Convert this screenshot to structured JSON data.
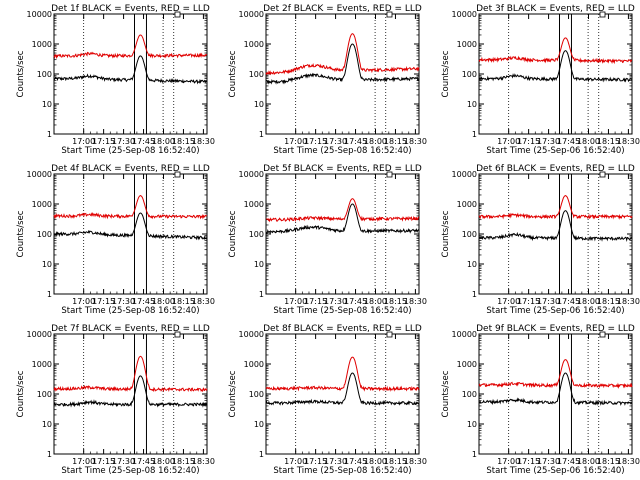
{
  "figure": {
    "xticks": [
      "17:00",
      "17:15",
      "17:30",
      "17:45",
      "18:00",
      "18:15",
      "18:30"
    ],
    "yticks": [
      "1",
      "10",
      "100",
      "1000",
      "10000"
    ],
    "ylabel": "Counts/sec",
    "xlabel": "Start Time (25-Sep-08 16:52:40)",
    "xlabel_alt": "Start Time (25-Sep-06 16:52:40)",
    "colors": {
      "events": "#000000",
      "lld": "#e00000"
    }
  },
  "chart_data": [
    {
      "type": "line",
      "title": "Det 1f BLACK = Events, RED = LLD",
      "xlabel": "Start Time (25-Sep-08 16:52:40)",
      "ylabel": "Counts/sec",
      "x_range_minutes": [
        -15,
        100
      ],
      "y_range": [
        1,
        10000
      ],
      "y_scale": "log",
      "dotted_vlines_min": [
        7.3,
        67,
        75
      ],
      "solid_vlines_min": [
        45.5,
        54.5
      ],
      "series": [
        {
          "name": "Events",
          "color": "#000000",
          "baseline": 70,
          "hump": {
            "center": 12,
            "width": 8,
            "height": 100
          },
          "peak": 400,
          "mid_trend": 55
        },
        {
          "name": "LLD",
          "color": "#e00000",
          "baseline": 400,
          "hump": {
            "center": 12,
            "width": 8,
            "height": 520
          },
          "peak": 2000,
          "mid_trend": 420
        }
      ]
    },
    {
      "type": "line",
      "title": "Det 2f BLACK = Events, RED = LLD",
      "xlabel": "Start Time (25-Sep-08 16:52:40)",
      "ylabel": "Counts/sec",
      "x_range_minutes": [
        -15,
        100
      ],
      "y_range": [
        1,
        10000
      ],
      "y_scale": "log",
      "dotted_vlines_min": [
        7.3,
        67,
        75
      ],
      "solid_vlines_min": [],
      "series": [
        {
          "name": "Events",
          "color": "#000000",
          "baseline": 55,
          "hump": {
            "center": 20,
            "width": 14,
            "height": 110
          },
          "peak": 1000,
          "mid_trend": 70
        },
        {
          "name": "LLD",
          "color": "#e00000",
          "baseline": 110,
          "hump": {
            "center": 20,
            "width": 14,
            "height": 240
          },
          "peak": 2200,
          "mid_trend": 150
        }
      ]
    },
    {
      "type": "line",
      "title": "Det 3f BLACK = Events, RED = LLD",
      "xlabel": "Start Time (25-Sep-06 16:52:40)",
      "ylabel": "Counts/sec",
      "x_range_minutes": [
        -15,
        100
      ],
      "y_range": [
        1,
        10000
      ],
      "y_scale": "log",
      "dotted_vlines_min": [
        7.3,
        67,
        75
      ],
      "solid_vlines_min": [
        45.5,
        54.5
      ],
      "series": [
        {
          "name": "Events",
          "color": "#000000",
          "baseline": 70,
          "hump": {
            "center": 12,
            "width": 8,
            "height": 100
          },
          "peak": 600,
          "mid_trend": 65
        },
        {
          "name": "LLD",
          "color": "#e00000",
          "baseline": 300,
          "hump": {
            "center": 12,
            "width": 8,
            "height": 380
          },
          "peak": 1600,
          "mid_trend": 270
        }
      ]
    },
    {
      "type": "line",
      "title": "Det 4f BLACK = Events, RED = LLD",
      "xlabel": "Start Time (25-Sep-08 16:52:40)",
      "ylabel": "Counts/sec",
      "x_range_minutes": [
        -15,
        100
      ],
      "y_range": [
        1,
        10000
      ],
      "y_scale": "log",
      "dotted_vlines_min": [
        7.3,
        67,
        75
      ],
      "solid_vlines_min": [
        45.5,
        54.5
      ],
      "series": [
        {
          "name": "Events",
          "color": "#000000",
          "baseline": 100,
          "hump": {
            "center": 12,
            "width": 8,
            "height": 130
          },
          "peak": 500,
          "mid_trend": 75
        },
        {
          "name": "LLD",
          "color": "#e00000",
          "baseline": 400,
          "hump": {
            "center": 12,
            "width": 8,
            "height": 480
          },
          "peak": 1900,
          "mid_trend": 380
        }
      ]
    },
    {
      "type": "line",
      "title": "Det 5f BLACK = Events, RED = LLD",
      "xlabel": "Start Time (25-Sep-08 16:52:40)",
      "ylabel": "Counts/sec",
      "x_range_minutes": [
        -15,
        100
      ],
      "y_range": [
        1,
        10000
      ],
      "y_scale": "log",
      "dotted_vlines_min": [
        7.3,
        67,
        75
      ],
      "solid_vlines_min": [],
      "series": [
        {
          "name": "Events",
          "color": "#000000",
          "baseline": 120,
          "hump": {
            "center": 20,
            "width": 14,
            "height": 200
          },
          "peak": 1000,
          "mid_trend": 130
        },
        {
          "name": "LLD",
          "color": "#e00000",
          "baseline": 300,
          "hump": {
            "center": 20,
            "width": 14,
            "height": 360
          },
          "peak": 1500,
          "mid_trend": 330
        }
      ]
    },
    {
      "type": "line",
      "title": "Det 6f BLACK = Events, RED = LLD",
      "xlabel": "Start Time (25-Sep-06 16:52:40)",
      "ylabel": "Counts/sec",
      "x_range_minutes": [
        -15,
        100
      ],
      "y_range": [
        1,
        10000
      ],
      "y_scale": "log",
      "dotted_vlines_min": [
        7.3,
        67,
        75
      ],
      "solid_vlines_min": [
        45.5,
        54.5
      ],
      "series": [
        {
          "name": "Events",
          "color": "#000000",
          "baseline": 75,
          "hump": {
            "center": 12,
            "width": 8,
            "height": 110
          },
          "peak": 600,
          "mid_trend": 70
        },
        {
          "name": "LLD",
          "color": "#e00000",
          "baseline": 380,
          "hump": {
            "center": 12,
            "width": 8,
            "height": 460
          },
          "peak": 1900,
          "mid_trend": 380
        }
      ]
    },
    {
      "type": "line",
      "title": "Det 7f BLACK = Events, RED = LLD",
      "xlabel": "Start Time (25-Sep-08 16:52:40)",
      "ylabel": "Counts/sec",
      "x_range_minutes": [
        -15,
        100
      ],
      "y_range": [
        1,
        10000
      ],
      "y_scale": "log",
      "dotted_vlines_min": [
        7.3,
        67,
        75
      ],
      "solid_vlines_min": [
        45.5,
        54.5
      ],
      "series": [
        {
          "name": "Events",
          "color": "#000000",
          "baseline": 45,
          "hump": {
            "center": 12,
            "width": 8,
            "height": 60
          },
          "peak": 400,
          "mid_trend": 45
        },
        {
          "name": "LLD",
          "color": "#e00000",
          "baseline": 150,
          "hump": {
            "center": 12,
            "width": 8,
            "height": 180
          },
          "peak": 1800,
          "mid_trend": 140
        }
      ]
    },
    {
      "type": "line",
      "title": "Det 8f BLACK = Events, RED = LLD",
      "xlabel": "Start Time (25-Sep-08 16:52:40)",
      "ylabel": "Counts/sec",
      "x_range_minutes": [
        -15,
        100
      ],
      "y_range": [
        1,
        10000
      ],
      "y_scale": "log",
      "dotted_vlines_min": [
        7.3,
        67,
        75
      ],
      "solid_vlines_min": [],
      "series": [
        {
          "name": "Events",
          "color": "#000000",
          "baseline": 50,
          "hump": {
            "center": 20,
            "width": 14,
            "height": 60
          },
          "peak": 500,
          "mid_trend": 50
        },
        {
          "name": "LLD",
          "color": "#e00000",
          "baseline": 150,
          "hump": {
            "center": 20,
            "width": 14,
            "height": 170
          },
          "peak": 1700,
          "mid_trend": 150
        }
      ]
    },
    {
      "type": "line",
      "title": "Det 9f BLACK = Events, RED = LLD",
      "xlabel": "Start Time (25-Sep-06 16:52:40)",
      "ylabel": "Counts/sec",
      "x_range_minutes": [
        -15,
        100
      ],
      "y_range": [
        1,
        10000
      ],
      "y_scale": "log",
      "dotted_vlines_min": [
        7.3,
        67,
        75
      ],
      "solid_vlines_min": [
        45.5,
        54.5
      ],
      "series": [
        {
          "name": "Events",
          "color": "#000000",
          "baseline": 55,
          "hump": {
            "center": 12,
            "width": 8,
            "height": 70
          },
          "peak": 500,
          "mid_trend": 50
        },
        {
          "name": "LLD",
          "color": "#e00000",
          "baseline": 200,
          "hump": {
            "center": 12,
            "width": 8,
            "height": 240
          },
          "peak": 1400,
          "mid_trend": 190
        }
      ]
    }
  ]
}
